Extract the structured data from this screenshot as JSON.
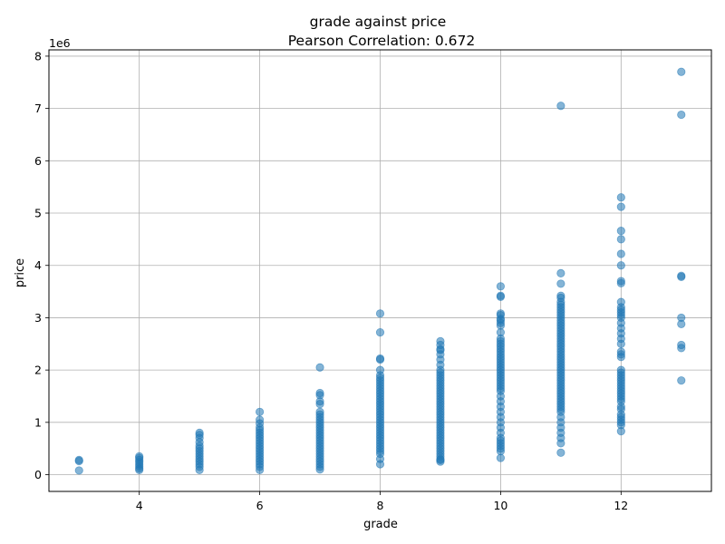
{
  "chart_data": {
    "type": "scatter",
    "title": "grade against price",
    "subtitle": "Pearson Correlation: 0.672",
    "xlabel": "grade",
    "ylabel": "price",
    "y_offset_label": "1e6",
    "xlim": [
      2.5,
      13.5
    ],
    "ylim": [
      -0.32,
      8.12
    ],
    "y_scale_factor": 1000000,
    "x_ticks": [
      4,
      6,
      8,
      10,
      12
    ],
    "y_ticks": [
      0,
      1,
      2,
      3,
      4,
      5,
      6,
      7,
      8
    ],
    "x_tick_labels": [
      "4",
      "6",
      "8",
      "10",
      "12"
    ],
    "y_tick_labels": [
      "0",
      "1",
      "2",
      "3",
      "4",
      "5",
      "6",
      "7",
      "8"
    ],
    "grid": true,
    "point_color": "#1f77b4",
    "point_alpha": 0.55,
    "series": [
      {
        "x": [
          3,
          3,
          3,
          4,
          4,
          4,
          4,
          4,
          4,
          4,
          4,
          5,
          5,
          5,
          5,
          5,
          5,
          5,
          5,
          5,
          5,
          5,
          5,
          5,
          5,
          6,
          6,
          6,
          6,
          6,
          6,
          6,
          6,
          6,
          6,
          6,
          6,
          6,
          6,
          6,
          6,
          6,
          6,
          6,
          6,
          7,
          7,
          7,
          7,
          7,
          7,
          7,
          7,
          7,
          7,
          7,
          7,
          7,
          7,
          7,
          7,
          7,
          7,
          7,
          7,
          7,
          7,
          7,
          7,
          7,
          7,
          7,
          7,
          8,
          8,
          8,
          8,
          8,
          8,
          8,
          8,
          8,
          8,
          8,
          8,
          8,
          8,
          8,
          8,
          8,
          8,
          8,
          8,
          8,
          8,
          8,
          8,
          8,
          8,
          8,
          8,
          8,
          8,
          8,
          8,
          8,
          8,
          8,
          8,
          8,
          8,
          9,
          9,
          9,
          9,
          9,
          9,
          9,
          9,
          9,
          9,
          9,
          9,
          9,
          9,
          9,
          9,
          9,
          9,
          9,
          9,
          9,
          9,
          9,
          9,
          9,
          9,
          9,
          9,
          9,
          9,
          9,
          9,
          9,
          9,
          9,
          9,
          9,
          9,
          9,
          9,
          9,
          9,
          9,
          9,
          10,
          10,
          10,
          10,
          10,
          10,
          10,
          10,
          10,
          10,
          10,
          10,
          10,
          10,
          10,
          10,
          10,
          10,
          10,
          10,
          10,
          10,
          10,
          10,
          10,
          10,
          10,
          10,
          10,
          10,
          10,
          10,
          10,
          10,
          10,
          10,
          10,
          10,
          10,
          10,
          10,
          10,
          10,
          10,
          10,
          10,
          11,
          11,
          11,
          11,
          11,
          11,
          11,
          11,
          11,
          11,
          11,
          11,
          11,
          11,
          11,
          11,
          11,
          11,
          11,
          11,
          11,
          11,
          11,
          11,
          11,
          11,
          11,
          11,
          11,
          11,
          11,
          11,
          11,
          11,
          11,
          11,
          11,
          11,
          11,
          11,
          11,
          11,
          11,
          11,
          11,
          11,
          11,
          11,
          11,
          11,
          11,
          11,
          11,
          11,
          11,
          12,
          12,
          12,
          12,
          12,
          12,
          12,
          12,
          12,
          12,
          12,
          12,
          12,
          12,
          12,
          12,
          12,
          12,
          12,
          12,
          12,
          12,
          12,
          12,
          12,
          12,
          12,
          12,
          12,
          12,
          12,
          12,
          12,
          12,
          12,
          12,
          12,
          12,
          12,
          12,
          12,
          12,
          12,
          13,
          13,
          13,
          13,
          13,
          13,
          13,
          13,
          13
        ],
        "y": [
          0.28,
          0.26,
          0.08,
          0.35,
          0.32,
          0.28,
          0.24,
          0.2,
          0.16,
          0.12,
          0.09,
          0.8,
          0.76,
          0.7,
          0.62,
          0.55,
          0.5,
          0.45,
          0.4,
          0.35,
          0.3,
          0.25,
          0.2,
          0.15,
          0.09,
          1.2,
          1.05,
          0.98,
          0.9,
          0.85,
          0.8,
          0.75,
          0.7,
          0.65,
          0.6,
          0.55,
          0.5,
          0.45,
          0.4,
          0.35,
          0.3,
          0.25,
          0.2,
          0.15,
          0.09,
          2.05,
          1.56,
          1.52,
          1.4,
          1.35,
          1.2,
          1.15,
          1.1,
          1.05,
          1.0,
          0.95,
          0.9,
          0.85,
          0.8,
          0.75,
          0.7,
          0.65,
          0.6,
          0.55,
          0.5,
          0.45,
          0.4,
          0.35,
          0.3,
          0.25,
          0.2,
          0.15,
          0.1,
          3.08,
          2.72,
          2.22,
          2.2,
          2.0,
          1.9,
          1.85,
          1.8,
          1.75,
          1.7,
          1.65,
          1.6,
          1.55,
          1.5,
          1.45,
          1.4,
          1.35,
          1.3,
          1.25,
          1.2,
          1.15,
          1.1,
          1.05,
          1.0,
          0.95,
          0.9,
          0.85,
          0.8,
          0.75,
          0.7,
          0.65,
          0.6,
          0.55,
          0.5,
          0.45,
          0.4,
          0.3,
          0.2,
          2.55,
          2.48,
          2.4,
          2.38,
          2.3,
          2.2,
          2.1,
          2.0,
          1.95,
          1.9,
          1.85,
          1.8,
          1.75,
          1.7,
          1.65,
          1.6,
          1.55,
          1.5,
          1.45,
          1.4,
          1.35,
          1.3,
          1.25,
          1.2,
          1.15,
          1.1,
          1.05,
          1.0,
          0.95,
          0.9,
          0.85,
          0.8,
          0.75,
          0.7,
          0.65,
          0.6,
          0.55,
          0.5,
          0.45,
          0.4,
          0.35,
          0.3,
          0.25,
          0.28,
          3.6,
          3.42,
          3.4,
          3.08,
          3.05,
          2.98,
          2.95,
          2.9,
          2.85,
          2.72,
          2.6,
          2.55,
          2.5,
          2.45,
          2.4,
          2.35,
          2.3,
          2.25,
          2.2,
          2.15,
          2.1,
          2.05,
          2.0,
          1.95,
          1.9,
          1.85,
          1.8,
          1.75,
          1.7,
          1.65,
          1.6,
          1.5,
          1.4,
          1.3,
          1.2,
          1.1,
          1.0,
          0.9,
          0.8,
          0.7,
          0.65,
          0.6,
          0.55,
          0.5,
          0.45,
          0.32,
          7.05,
          3.85,
          3.65,
          3.42,
          3.38,
          3.3,
          3.25,
          3.2,
          3.15,
          3.1,
          3.05,
          3.0,
          2.95,
          2.9,
          2.85,
          2.8,
          2.75,
          2.7,
          2.65,
          2.6,
          2.55,
          2.5,
          2.45,
          2.4,
          2.35,
          2.3,
          2.25,
          2.2,
          2.15,
          2.1,
          2.05,
          2.0,
          1.95,
          1.9,
          1.85,
          1.8,
          1.75,
          1.7,
          1.65,
          1.6,
          1.55,
          1.5,
          1.45,
          1.4,
          1.35,
          1.3,
          1.25,
          1.2,
          1.1,
          1.0,
          0.9,
          0.8,
          0.7,
          0.6,
          0.42,
          5.3,
          5.12,
          4.66,
          4.5,
          4.22,
          4.0,
          3.7,
          3.66,
          3.3,
          3.2,
          3.15,
          3.1,
          3.05,
          3.0,
          2.9,
          2.8,
          2.7,
          2.6,
          2.5,
          2.35,
          2.3,
          2.25,
          2.0,
          1.95,
          1.9,
          1.85,
          1.8,
          1.75,
          1.7,
          1.65,
          1.6,
          1.55,
          1.5,
          1.45,
          1.4,
          1.3,
          1.25,
          1.15,
          1.1,
          1.05,
          1.0,
          0.95,
          0.83,
          7.7,
          6.88,
          3.8,
          3.78,
          3.0,
          2.88,
          2.48,
          2.42,
          1.8
        ]
      }
    ]
  }
}
